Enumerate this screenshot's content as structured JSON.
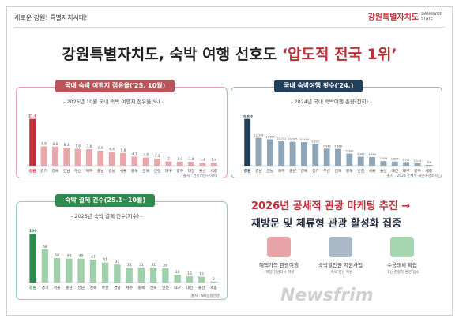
{
  "header": {
    "slogan": "새로운 강원! 특별자치시대!",
    "brand_ko": "강원특별자치도",
    "brand_en": "GANGWON STATE"
  },
  "headline": {
    "main": "강원특별자치도, 숙박 여행 선호도 ",
    "highlight": "‘압도적 전국 1위’"
  },
  "colors": {
    "red": "#c0303a",
    "navy": "#23405a",
    "green": "#2f8a4e",
    "bar_red_light": "#e7a7ab",
    "bar_navy_light": "#8fa6b8",
    "bar_green_light": "#9fd0a9"
  },
  "chart_data": [
    {
      "type": "bar",
      "tab": "국내 숙박 여행지 점유율('25. 10월)",
      "title": "- 2025년 10월 국내 숙박 여행지 점유율(%) -",
      "source": "(출처 : 컨슈머인사이트)",
      "categories": [
        "강원",
        "경기",
        "경북",
        "전남",
        "부산",
        "제주",
        "충남",
        "경남",
        "서울",
        "충북",
        "전북",
        "인천",
        "대구",
        "광주",
        "대전",
        "울산",
        "세종"
      ],
      "values": [
        21.6,
        8.9,
        8.8,
        8.3,
        7.8,
        7.6,
        6.9,
        6.4,
        5.9,
        4.2,
        3.8,
        3.3,
        2.0,
        1.9,
        1.8,
        1.4,
        1.4
      ],
      "ylim": [
        0,
        24
      ]
    },
    {
      "type": "bar",
      "tab": "국내 숙박여행 횟수('24.)",
      "title": "- 2024년 국내 숙박여행 총량(천회) -",
      "source": "(출처 : 2024 문체부 국민여행조사)",
      "categories": [
        "강원",
        "경남",
        "전남",
        "제주",
        "충남",
        "경북",
        "경기",
        "부산",
        "전북",
        "충북",
        "인천",
        "서울",
        "울산",
        "대전",
        "대구",
        "광주",
        "세종"
      ],
      "values": [
        20696,
        12336,
        11665,
        10771,
        10585,
        10449,
        9522,
        7543,
        7468,
        5393,
        3995,
        3869,
        2053,
        1855,
        1591,
        1114,
        326
      ],
      "ylim": [
        0,
        23000
      ]
    },
    {
      "type": "bar",
      "tab": "숙박 결제 건수(25.1~10월)",
      "title": "- 2025년 숙박 결제 건수(지수) -",
      "source": "(출처 : NH농협은행)",
      "categories": [
        "강원",
        "경기",
        "서울",
        "충남",
        "전남",
        "경북",
        "부산",
        "경남",
        "제주",
        "충북",
        "전북",
        "인천",
        "대구",
        "대전",
        "울산",
        "세종"
      ],
      "values": [
        100,
        68,
        50,
        49,
        49,
        47,
        41,
        37,
        31,
        31,
        31,
        29,
        16,
        13,
        12,
        2
      ],
      "ylim": [
        0,
        110
      ]
    }
  ],
  "promo": {
    "line1": "2026년 공세적 관광 마케팅 추진 →",
    "line2": "재방문 및 체류형 관광 활성화 집중"
  },
  "cards": [
    {
      "label": "혜택가득 관광여행",
      "sub": "· 여행 인센티브 지원"
    },
    {
      "label": "숙박할인권 지원사업",
      "sub": "· 숙박 할인 지원"
    },
    {
      "label": "수용태세 확립",
      "sub": "· 1인 관광객 환영 업소"
    }
  ],
  "watermark": "Newsfrim"
}
